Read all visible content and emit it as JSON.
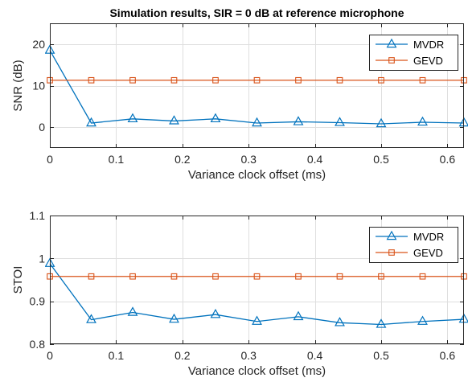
{
  "chart_data": [
    {
      "type": "line",
      "title": "Simulation results, SIR = 0 dB at reference microphone",
      "xlabel": "Variance clock offset (ms)",
      "ylabel": "SNR (dB)",
      "xlim": [
        0,
        0.625
      ],
      "ylim": [
        -5,
        25
      ],
      "xticks": [
        0,
        0.1,
        0.2,
        0.3,
        0.4,
        0.5,
        0.6
      ],
      "xtick_labels": [
        "0",
        "0.1",
        "0.2",
        "0.3",
        "0.4",
        "0.5",
        "0.6"
      ],
      "yticks": [
        0,
        10,
        20
      ],
      "ytick_labels": [
        "0",
        "10",
        "20"
      ],
      "grid": true,
      "legend": "top-right",
      "x": [
        0,
        0.0625,
        0.125,
        0.1875,
        0.25,
        0.3125,
        0.375,
        0.4375,
        0.5,
        0.5625,
        0.625
      ],
      "series": [
        {
          "name": "MVDR",
          "color": "#0072BD",
          "marker": "triangle",
          "values": [
            18.5,
            1.0,
            2.0,
            1.5,
            2.0,
            1.0,
            1.3,
            1.1,
            0.8,
            1.2,
            1.0
          ]
        },
        {
          "name": "GEVD",
          "color": "#D95319",
          "marker": "square",
          "values": [
            11.3,
            11.3,
            11.3,
            11.3,
            11.3,
            11.3,
            11.3,
            11.3,
            11.3,
            11.3,
            11.3
          ]
        }
      ]
    },
    {
      "type": "line",
      "title": "",
      "xlabel": "Variance clock offset (ms)",
      "ylabel": "STOI",
      "xlim": [
        0,
        0.625
      ],
      "ylim": [
        0.8,
        1.1
      ],
      "xticks": [
        0,
        0.1,
        0.2,
        0.3,
        0.4,
        0.5,
        0.6
      ],
      "xtick_labels": [
        "0",
        "0.1",
        "0.2",
        "0.3",
        "0.4",
        "0.5",
        "0.6"
      ],
      "yticks": [
        0.8,
        0.9,
        1.0,
        1.1
      ],
      "ytick_labels": [
        "0.8",
        "0.9",
        "1",
        "1.1"
      ],
      "grid": true,
      "legend": "top-right",
      "x": [
        0,
        0.0625,
        0.125,
        0.1875,
        0.25,
        0.3125,
        0.375,
        0.4375,
        0.5,
        0.5625,
        0.625
      ],
      "series": [
        {
          "name": "MVDR",
          "color": "#0072BD",
          "marker": "triangle",
          "values": [
            0.988,
            0.857,
            0.874,
            0.858,
            0.869,
            0.853,
            0.864,
            0.85,
            0.846,
            0.853,
            0.858
          ]
        },
        {
          "name": "GEVD",
          "color": "#D95319",
          "marker": "square",
          "values": [
            0.958,
            0.958,
            0.958,
            0.958,
            0.958,
            0.958,
            0.958,
            0.958,
            0.958,
            0.958,
            0.958
          ]
        }
      ]
    }
  ]
}
